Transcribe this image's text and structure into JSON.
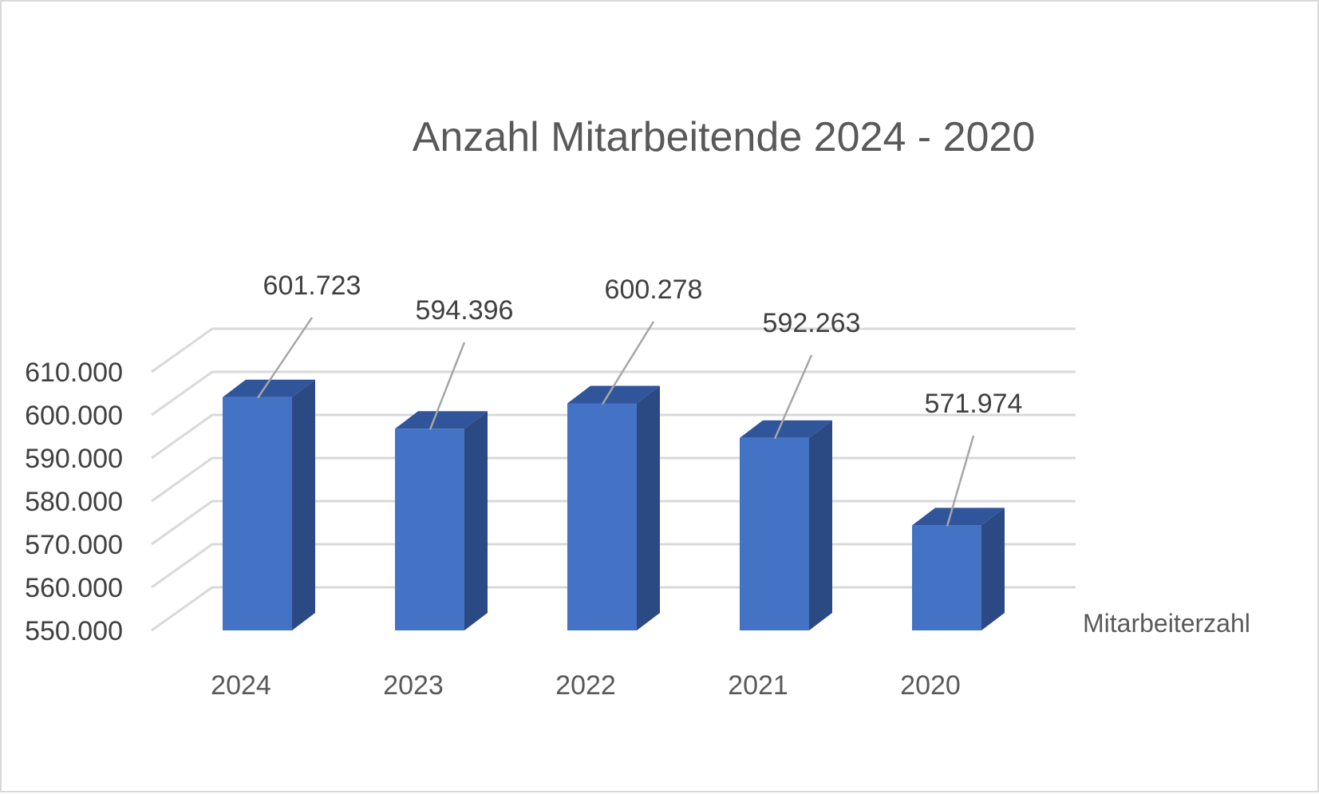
{
  "chart_data": {
    "type": "bar",
    "title": "Anzahl Mitarbeitende 2024 - 2020",
    "categories": [
      "2024",
      "2023",
      "2022",
      "2021",
      "2020"
    ],
    "series": [
      {
        "name": "Mitarbeiterzahl",
        "values": [
          601723,
          594396,
          600278,
          592263,
          571974
        ],
        "labels": [
          "601.723",
          "594.396",
          "600.278",
          "592.263",
          "571.974"
        ]
      }
    ],
    "yticks": [
      "550.000",
      "560.000",
      "570.000",
      "580.000",
      "590.000",
      "600.000",
      "610.000"
    ],
    "ylim": [
      550000,
      610000
    ],
    "grid": true,
    "legend": "right",
    "colors": {
      "bar_front": "#4472c4",
      "bar_side": "#2b4a84",
      "bar_top": "#30559b",
      "grid": "#d9d9d9",
      "leader": "#a6a6a6"
    }
  }
}
